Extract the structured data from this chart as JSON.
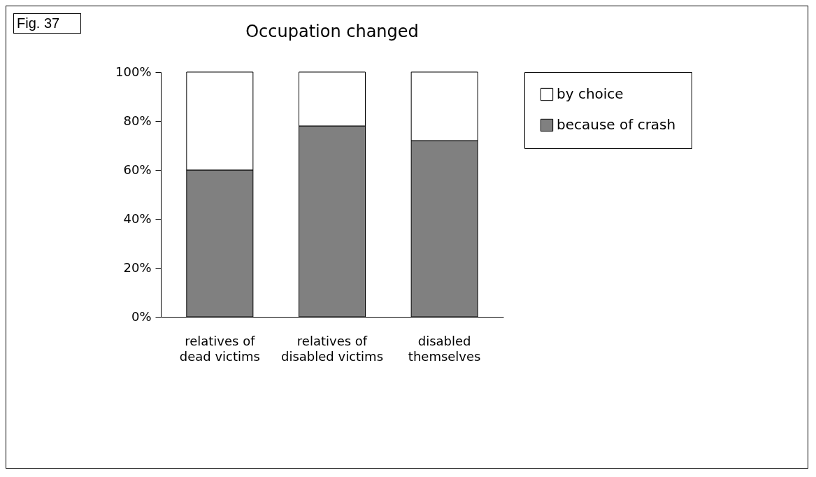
{
  "chart_data": {
    "type": "bar",
    "title": "Occupation changed",
    "annotations": [
      "Fig. 37"
    ],
    "categories": [
      "relatives of\ndead victims",
      "relatives of\ndisabled victims",
      "disabled\nthemselves"
    ],
    "stacked": true,
    "series": [
      {
        "name": "because of crash",
        "color": "#808080",
        "values": [
          60,
          78,
          72
        ]
      },
      {
        "name": "by choice",
        "color": "#ffffff",
        "values": [
          40,
          22,
          28
        ]
      }
    ],
    "ylim": [
      0,
      100
    ],
    "yticks": [
      {
        "value": 0,
        "label": "0%"
      },
      {
        "value": 20,
        "label": "20%"
      },
      {
        "value": 40,
        "label": "40%"
      },
      {
        "value": 60,
        "label": "60%"
      },
      {
        "value": 80,
        "label": "80%"
      },
      {
        "value": 100,
        "label": "100%"
      }
    ],
    "grid": false,
    "legend": "right"
  }
}
